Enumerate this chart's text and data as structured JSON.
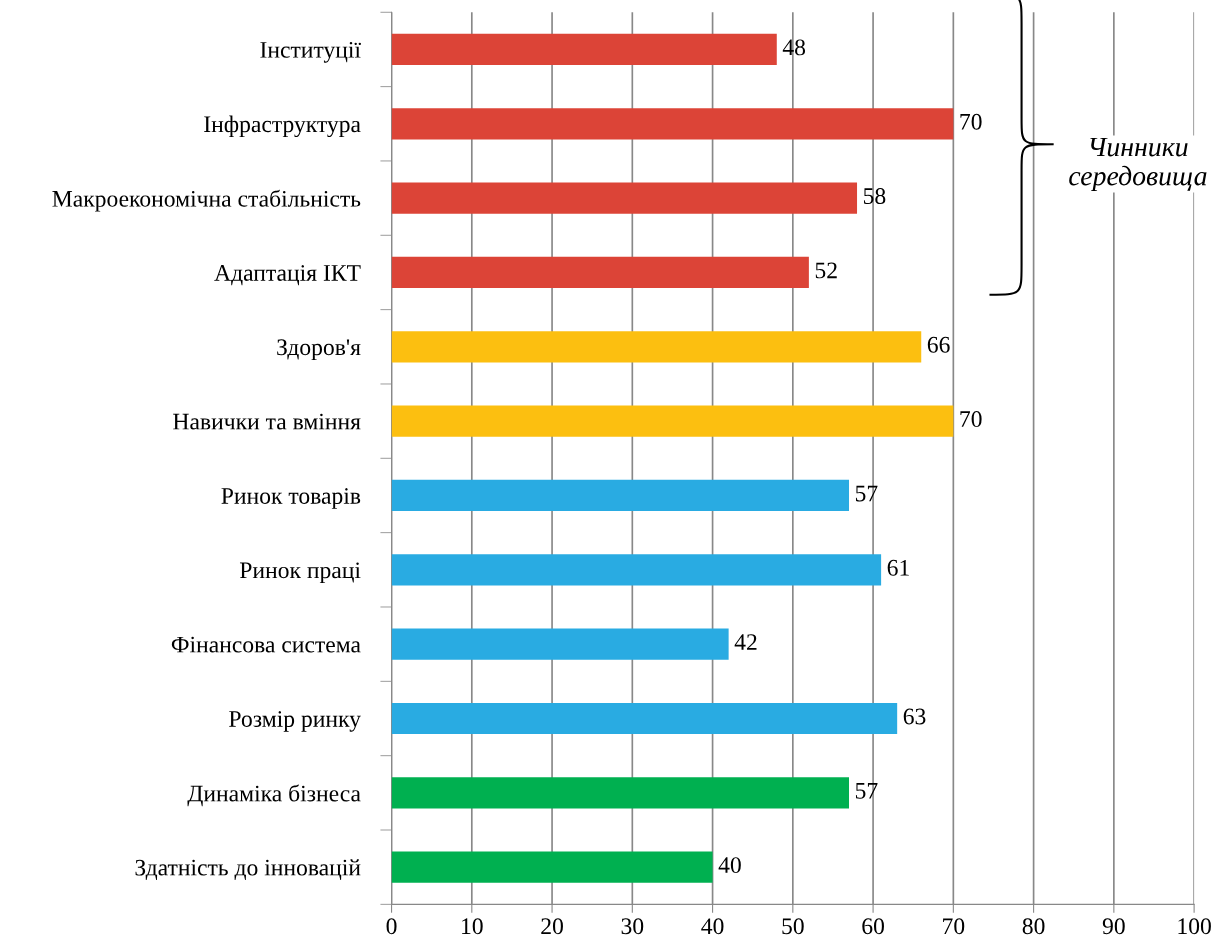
{
  "chart_data": {
    "type": "bar",
    "orientation": "horizontal",
    "categories": [
      "Інституції",
      "Інфраструктура",
      "Макроекономічна стабільність",
      "Адаптація ІКТ",
      "Здоров'я",
      "Навички та вміння",
      "Ринок товарів",
      "Ринок праці",
      "Фінансова система",
      "Розмір ринку",
      "Динаміка бізнеса",
      "Здатність до інновацій"
    ],
    "values": [
      48,
      70,
      58,
      52,
      66,
      70,
      57,
      61,
      42,
      63,
      57,
      40
    ],
    "colors": [
      "#dc4437",
      "#dc4437",
      "#dc4437",
      "#dc4437",
      "#fcbf10",
      "#fcbf10",
      "#29abe2",
      "#29abe2",
      "#29abe2",
      "#29abe2",
      "#00b050",
      "#00b050"
    ],
    "data_labels": true,
    "xlim": [
      0,
      100
    ],
    "xticks": [
      0,
      10,
      20,
      30,
      40,
      50,
      60,
      70,
      80,
      90,
      100
    ],
    "grid": "x",
    "annotations": [
      "Чинники середовища"
    ]
  }
}
